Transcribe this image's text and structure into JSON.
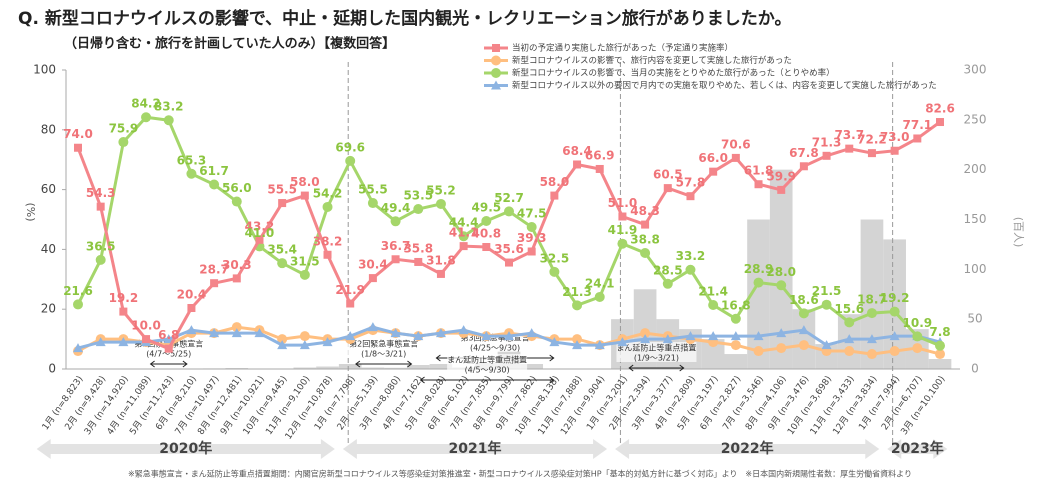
{
  "chart_data": {
    "type": "line",
    "title": "Q.  新型コロナウイルスの影響で、中止・延期した国内観光・レクリエーション旅行がありましたか。",
    "subtitle": "（日帰り含む・旅行を計画していた人のみ）【複数回答】",
    "ylabel": "(%)",
    "y2label": "(百人)",
    "categories": [
      "1月 (n=8,823)",
      "2月 (n=9,428)",
      "3月 (n=14,920)",
      "4月 (n=11,089)",
      "5月 (n=11,243)",
      "6月 (n=8,210)",
      "7月 (n=10,497)",
      "8月 (n=12,481)",
      "9月 (n=10,921)",
      "10月 (n=9,445)",
      "11月 (n=9,100)",
      "12月 (n=10,878)",
      "1月 (n=7,798)",
      "2月 (n=5,139)",
      "3月 (n=8,080)",
      "4月 (n=7,162)",
      "5月 (n=8,028)",
      "6月 (n=6,102)",
      "7月 (n=7,855)",
      "8月 (n=9,799)",
      "9月 (n=7,862)",
      "10月 (n=8,138)",
      "11月 (n=7,888)",
      "12月 (n=9,904)",
      "1月 (n=3,201)",
      "2月 (n=2,394)",
      "3月 (n=3,377)",
      "4月 (n=2,809)",
      "5月 (n=3,197)",
      "6月 (n=2,827)",
      "7月 (n=3,546)",
      "8月 (n=4,106)",
      "9月 (n=3,476)",
      "10月 (n=3,698)",
      "11月 (n=3,433)",
      "12月 (n=3,834)",
      "1月 (n=7,994)",
      "2月 (n=6,707)",
      "3月 (n=10,100)"
    ],
    "series": [
      {
        "name": "当初の予定通り実施した旅行があった（予定通り実施率）",
        "color": "#f4858a",
        "marker": "square",
        "values": [
          74.0,
          54.3,
          19.2,
          10.0,
          6.8,
          20.4,
          28.7,
          30.3,
          43.2,
          55.5,
          58.0,
          38.2,
          21.9,
          30.4,
          36.7,
          35.8,
          31.8,
          41.1,
          40.8,
          35.6,
          39.3,
          58.0,
          68.4,
          66.9,
          51.0,
          48.3,
          60.5,
          57.8,
          66.0,
          70.6,
          61.8,
          59.9,
          67.8,
          71.3,
          73.7,
          72.2,
          73.0,
          77.1,
          82.6
        ],
        "value_labels": [
          "74.0",
          "54.3",
          "19.2",
          "10.0",
          "6.8",
          "20.4",
          "28.7",
          "30.3",
          "43.2",
          "55.5",
          "58.0",
          "38.2",
          "21.9",
          "30.4",
          "36.7",
          "35.8",
          "31.8",
          "41.1",
          "40.8",
          "35.6",
          "39.3",
          "58.0",
          "68.4",
          "66.9",
          "51.0",
          "48.3",
          "60.5",
          "57.8",
          "66.0",
          "70.6",
          "61.8",
          "59.9",
          "67.8",
          "71.3",
          "73.7",
          "72.2",
          "73.0",
          "77.1",
          "82.6"
        ]
      },
      {
        "name": "新型コロナウイルスの影響で、旅行内容を変更して実施した旅行があった",
        "color": "#ffbf80",
        "marker": "circle",
        "values": [
          6,
          10,
          10,
          9,
          8,
          12,
          12,
          14,
          13,
          10,
          11,
          10,
          10,
          13,
          12,
          11,
          12,
          12,
          11,
          12,
          11,
          10,
          10,
          8,
          10,
          12,
          11,
          10,
          9,
          8,
          6,
          7,
          8,
          6,
          6,
          5,
          6,
          7,
          5
        ]
      },
      {
        "name": "新型コロナウイルスの影響で、当月の実施をとりやめた旅行があった（とりやめ率）",
        "color": "#a5d66a",
        "marker": "circle",
        "values": [
          21.6,
          36.5,
          75.9,
          84.2,
          83.2,
          65.3,
          61.7,
          56.0,
          41.0,
          35.4,
          31.5,
          54.2,
          69.6,
          55.5,
          49.4,
          53.5,
          55.2,
          44.4,
          49.5,
          52.7,
          47.5,
          32.5,
          21.3,
          24.1,
          41.9,
          38.8,
          28.5,
          33.2,
          21.4,
          16.8,
          28.9,
          28.0,
          18.6,
          21.5,
          15.6,
          18.7,
          19.2,
          10.9,
          7.8
        ],
        "value_labels": [
          "21.6",
          "36.5",
          "75.9",
          "84.2",
          "83.2",
          "65.3",
          "61.7",
          "56.0",
          "41.0",
          "35.4",
          "31.5",
          "54.2",
          "69.6",
          "55.5",
          "49.4",
          "53.5",
          "55.2",
          "44.4",
          "49.5",
          "52.7",
          "47.5",
          "32.5",
          "21.3",
          "24.1",
          "41.9",
          "38.8",
          "28.5",
          "33.2",
          "21.4",
          "16.8",
          "28.9",
          "28.0",
          "18.6",
          "21.5",
          "15.6",
          "18.7",
          "19.2",
          "10.9",
          "7.8"
        ]
      },
      {
        "name": "新型コロナウイルス以外の要因で月内での実施を取りやめた、若しくは、内容を変更して実施した旅行があった",
        "color": "#8db4e2",
        "marker": "triangle",
        "values": [
          7,
          9,
          9,
          9,
          10,
          13,
          12,
          12,
          12,
          8,
          8,
          9,
          11,
          14,
          12,
          11,
          12,
          13,
          11,
          11,
          12,
          9,
          8,
          8,
          9,
          10,
          10,
          11,
          11,
          11,
          11,
          12,
          13,
          8,
          10,
          10,
          11,
          11,
          9
        ]
      }
    ],
    "bars": {
      "axis": "y2",
      "color": "#d4d4d4",
      "values": [
        0,
        0,
        0,
        0.4,
        0,
        0,
        0.6,
        1,
        0.5,
        0.5,
        1.5,
        2.5,
        5,
        1.5,
        1.2,
        4,
        5,
        1.5,
        6,
        18,
        5,
        0.3,
        0.1,
        0.2,
        50,
        80,
        50,
        40,
        30,
        15,
        150,
        200,
        60,
        25,
        55,
        150,
        130,
        40,
        10
      ]
    },
    "ylim": [
      0,
      100
    ],
    "yticks": [
      0,
      20,
      40,
      60,
      80,
      100
    ],
    "y2lim": [
      0,
      300
    ],
    "y2ticks": [
      0,
      50,
      100,
      150,
      200,
      250,
      300
    ],
    "years": [
      "2020年",
      "2021年",
      "2022年",
      "2023年"
    ],
    "annotations": [
      {
        "text": "第1回緊急事態宣言",
        "period": "(4/7～5/25)"
      },
      {
        "text": "第2回緊急事態宣言",
        "period": "(1/8～3/21)"
      },
      {
        "text": "第3回緊急事態宣言",
        "period": "(4/25～9/30)"
      },
      {
        "text": "まん延防止等重点措置",
        "period": "(4/5～9/30)"
      },
      {
        "text": "まん延防止等重点措置",
        "period": "(1/9～3/21)"
      }
    ],
    "footnote": "※緊急事態宣言・まん延防止等重点措置期間：内閣官房新型コロナウイルス等感染症対策推進室・新型コロナウイルス感染症対策HP「基本的対処方針に基づく対応」より　※日本国内新規陽性者数：厚生労働省資料より"
  }
}
